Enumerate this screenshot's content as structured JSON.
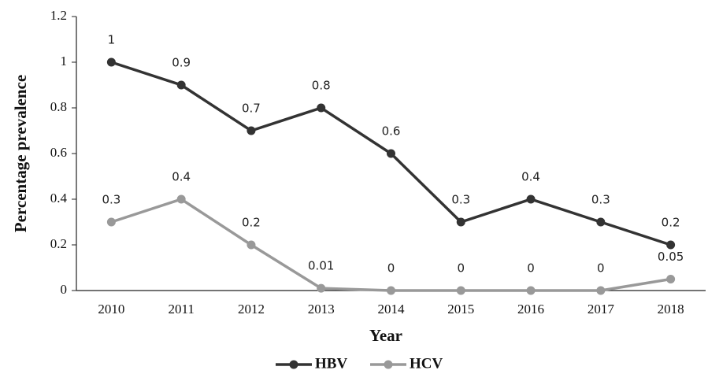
{
  "chart_data": {
    "type": "line",
    "x_label": "Year",
    "y_label": "Percentage prevalence",
    "categories": [
      "2010",
      "2011",
      "2012",
      "2013",
      "2014",
      "2015",
      "2016",
      "2017",
      "2018"
    ],
    "series": [
      {
        "name": "HBV",
        "color": "#333333",
        "values": [
          1,
          0.9,
          0.7,
          0.8,
          0.6,
          0.3,
          0.4,
          0.3,
          0.2
        ]
      },
      {
        "name": "HCV",
        "color": "#999999",
        "values": [
          0.3,
          0.4,
          0.2,
          0.01,
          0,
          0,
          0,
          0,
          0.05
        ]
      }
    ],
    "ylim": [
      0,
      1.2
    ],
    "yticks": [
      0,
      0.2,
      0.4,
      0.6,
      0.8,
      1,
      1.2
    ],
    "legend": "bottom"
  }
}
